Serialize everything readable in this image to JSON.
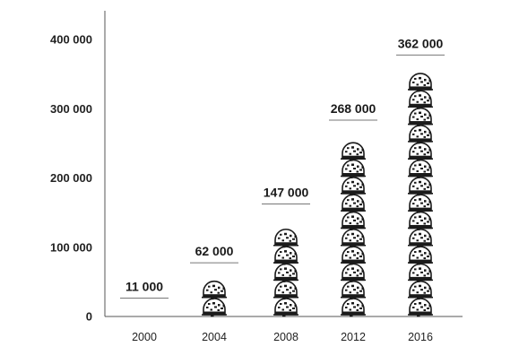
{
  "chart_data": {
    "type": "bar",
    "style": "pictogram",
    "icon": "motorcycle-helmet-icon",
    "categories": [
      "2000",
      "2004",
      "2008",
      "2012",
      "2016"
    ],
    "values": [
      11000,
      62000,
      147000,
      268000,
      362000
    ],
    "data_labels": [
      "11 000",
      "62 000",
      "147 000",
      "268 000",
      "362 000"
    ],
    "y_ticks": [
      {
        "value": 0,
        "label": "0"
      },
      {
        "value": 100000,
        "label": "100 000"
      },
      {
        "value": 200000,
        "label": "200 000"
      },
      {
        "value": 300000,
        "label": "300 000"
      },
      {
        "value": 400000,
        "label": "400 000"
      }
    ],
    "units_per_icon": 25000,
    "ylim": [
      0,
      440000
    ],
    "grid": false,
    "legend": "none",
    "title": "",
    "xlabel": "",
    "ylabel": "",
    "colors": {
      "icon_fill": "#ffffff",
      "icon_stroke": "#1a1a1a",
      "text": "#222222",
      "axis": "#555555"
    }
  }
}
